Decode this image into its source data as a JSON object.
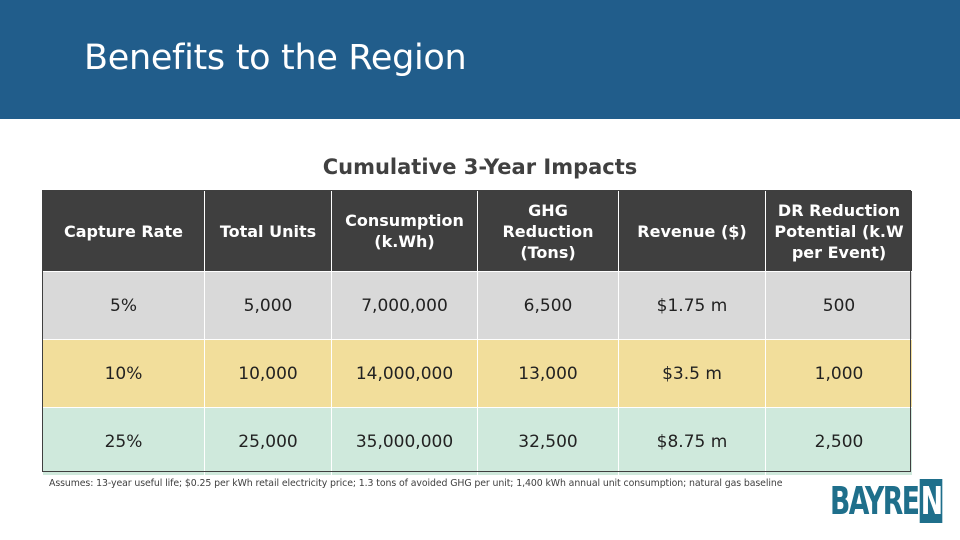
{
  "header": {
    "title": "Benefits to the Region"
  },
  "table_title": "Cumulative 3-Year Impacts",
  "table": {
    "columns": [
      "Capture Rate",
      "Total Units",
      "Consumption (k.Wh)",
      "GHG Reduction (Tons)",
      "Revenue ($)",
      "DR Reduction Potential (k.W per Event)"
    ],
    "rows": [
      [
        "5%",
        "5,000",
        "7,000,000",
        "6,500",
        "$1.75 m",
        "500"
      ],
      [
        "10%",
        "10,000",
        "14,000,000",
        "13,000",
        "$3.5 m",
        "1,000"
      ],
      [
        "25%",
        "25,000",
        "35,000,000",
        "32,500",
        "$8.75 m",
        "2,500"
      ]
    ]
  },
  "footnote": "Assumes: 13-year useful life; $0.25 per kWh retail electricity price; 1.3 tons of avoided GHG per unit; 1,400 kWh annual unit consumption; natural gas baseline",
  "logo": {
    "text_main": "BAYRE",
    "text_box": "N"
  },
  "colors": {
    "header": "#215d8b",
    "table_header": "#3f3f3f",
    "row_5pct": "#d9d9d9",
    "row_10pct": "#f2de9b",
    "row_25pct": "#cfe9dc",
    "logo": "#1f6f8b"
  }
}
